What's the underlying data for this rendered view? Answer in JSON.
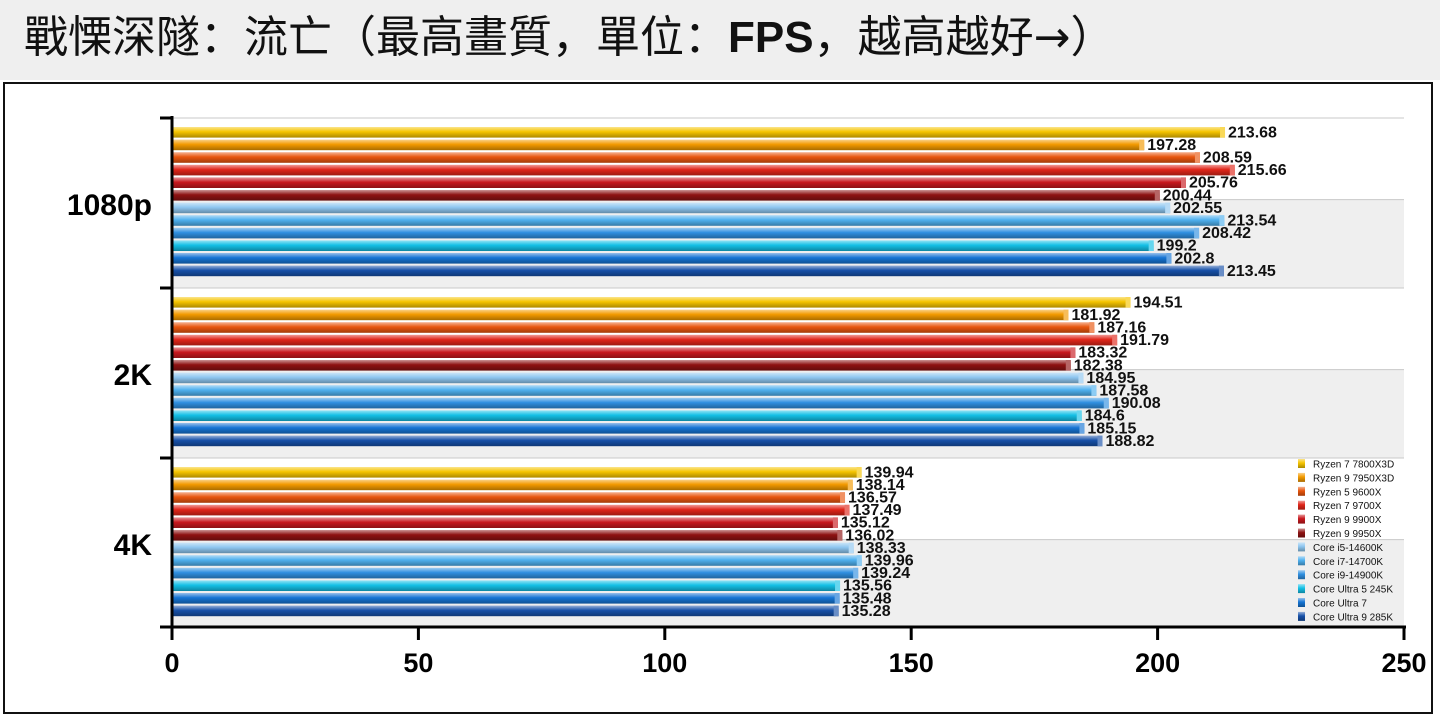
{
  "title": {
    "prefix": "戰慄深隧：流亡（最高畫質，單位：",
    "unit": "FPS",
    "suffix": "，越高越好→）"
  },
  "chart_data": {
    "type": "bar",
    "orientation": "horizontal",
    "categories": [
      "1080p",
      "2K",
      "4K"
    ],
    "xlim": [
      0,
      250
    ],
    "xticks": [
      0,
      50,
      100,
      150,
      200,
      250
    ],
    "legend_position": "right",
    "series": [
      {
        "name": "Ryzen 7 7800X3D",
        "color": "#f5c400",
        "values": [
          213.68,
          194.51,
          139.94
        ]
      },
      {
        "name": "Ryzen 9 7950X3D",
        "color": "#f39a00",
        "values": [
          197.28,
          181.92,
          138.14
        ]
      },
      {
        "name": "Ryzen 5 9600X",
        "color": "#e8560e",
        "values": [
          208.59,
          187.16,
          136.57
        ]
      },
      {
        "name": "Ryzen 7 9700X",
        "color": "#e0261a",
        "values": [
          215.66,
          191.79,
          137.49
        ]
      },
      {
        "name": "Ryzen 9 9900X",
        "color": "#c8181e",
        "values": [
          205.76,
          183.32,
          135.12
        ]
      },
      {
        "name": "Ryzen 9 9950X",
        "color": "#8e1212",
        "values": [
          200.44,
          182.38,
          136.02
        ]
      },
      {
        "name": "Core i5-14600K",
        "color": "#8ec6f0",
        "values": [
          202.55,
          184.95,
          138.33
        ]
      },
      {
        "name": "Core i7-14700K",
        "color": "#4fb0ee",
        "values": [
          213.54,
          187.58,
          139.96
        ]
      },
      {
        "name": "Core i9-14900K",
        "color": "#2f8fe0",
        "values": [
          208.42,
          190.08,
          139.24
        ]
      },
      {
        "name": "Core Ultra 5 245K",
        "color": "#14c0e6",
        "values": [
          199.2,
          184.6,
          135.56
        ]
      },
      {
        "name": "Core Ultra 7",
        "color": "#1574d4",
        "values": [
          202.8,
          185.15,
          135.48
        ]
      },
      {
        "name": "Core Ultra 9 285K",
        "color": "#1650a8",
        "values": [
          213.45,
          188.82,
          135.28
        ]
      }
    ],
    "value_labels": [
      [
        "213.68",
        "194.51",
        "139.94"
      ],
      [
        "197.28",
        "181.92",
        "138.14"
      ],
      [
        "208.59",
        "187.16",
        "136.57"
      ],
      [
        "215.66",
        "191.79",
        "137.49"
      ],
      [
        "205.76",
        "183.32",
        "135.12"
      ],
      [
        "200.44",
        "182.38",
        "136.02"
      ],
      [
        "202.55",
        "184.95",
        "138.33"
      ],
      [
        "213.54",
        "187.58",
        "139.96"
      ],
      [
        "208.42",
        "190.08",
        "139.24"
      ],
      [
        "199.2",
        "184.6",
        "135.56"
      ],
      [
        "202.8",
        "185.15",
        "135.48"
      ],
      [
        "213.45",
        "188.82",
        "135.28"
      ]
    ]
  }
}
